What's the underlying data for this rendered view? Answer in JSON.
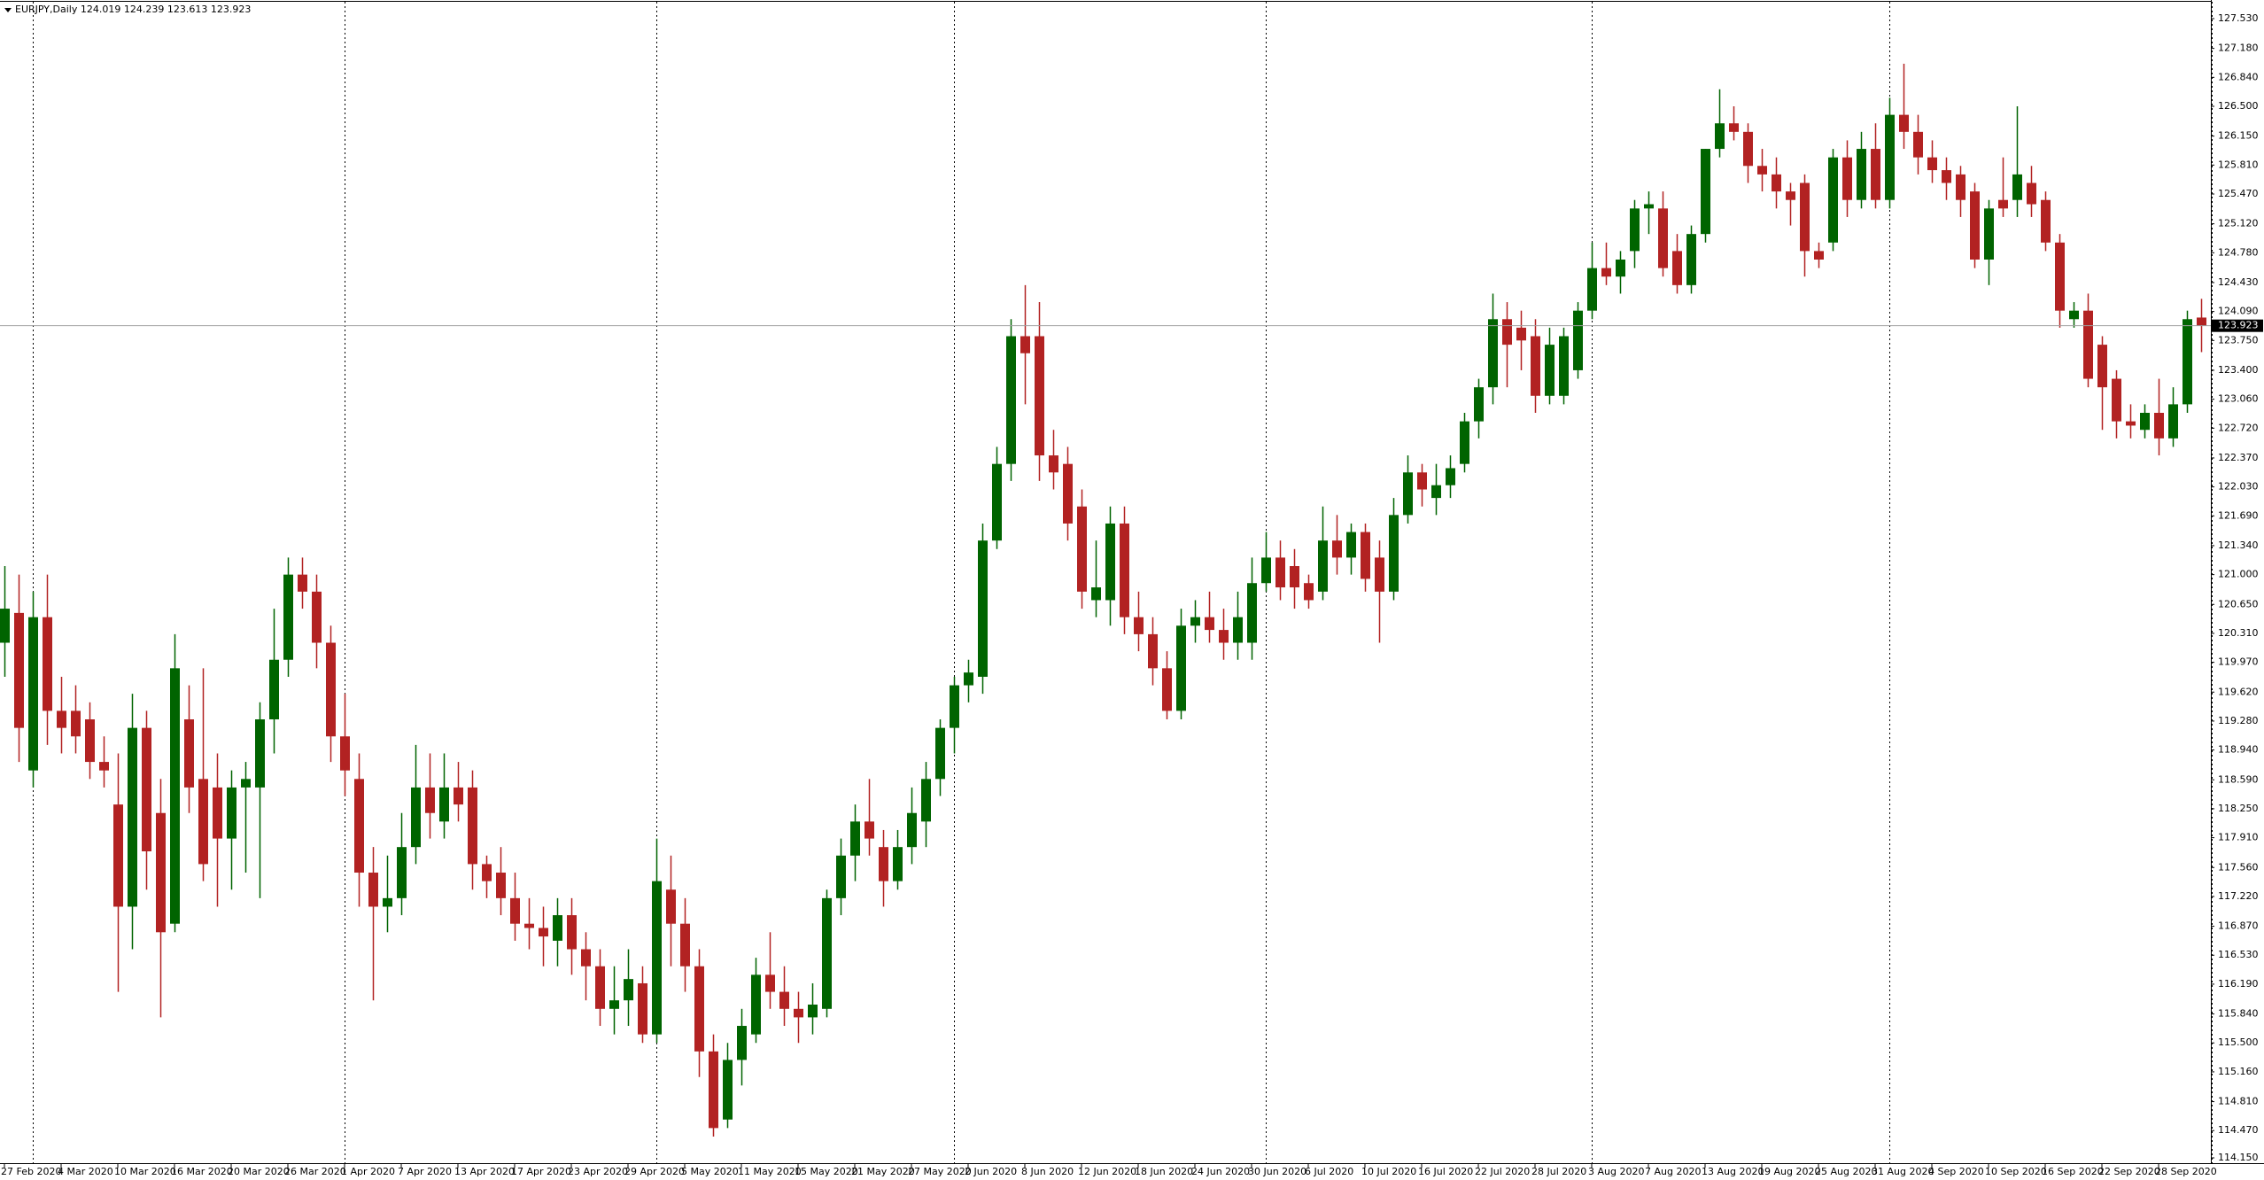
{
  "chart_data": {
    "type": "candlestick",
    "symbol": "EURJPY,Daily",
    "up_color": "#006400",
    "down_color": "#b22222",
    "ylim": [
      114.15,
      127.53
    ],
    "yticks": [
      {
        "value": 127.53,
        "label": "127.530"
      },
      {
        "value": 127.18,
        "label": "127.180"
      },
      {
        "value": 126.84,
        "label": "126.840"
      },
      {
        "value": 126.5,
        "label": "126.500"
      },
      {
        "value": 126.15,
        "label": "126.150"
      },
      {
        "value": 125.81,
        "label": "125.810"
      },
      {
        "value": 125.47,
        "label": "125.470"
      },
      {
        "value": 125.12,
        "label": "125.120"
      },
      {
        "value": 124.78,
        "label": "124.780"
      },
      {
        "value": 124.43,
        "label": "124.430"
      },
      {
        "value": 124.09,
        "label": "124.090"
      },
      {
        "value": 123.75,
        "label": "123.750"
      },
      {
        "value": 123.4,
        "label": "123.400"
      },
      {
        "value": 123.06,
        "label": "123.060"
      },
      {
        "value": 122.72,
        "label": "122.720"
      },
      {
        "value": 122.37,
        "label": "122.370"
      },
      {
        "value": 122.03,
        "label": "122.030"
      },
      {
        "value": 121.69,
        "label": "121.690"
      },
      {
        "value": 121.34,
        "label": "121.340"
      },
      {
        "value": 121.0,
        "label": "121.000"
      },
      {
        "value": 120.65,
        "label": "120.650"
      },
      {
        "value": 120.31,
        "label": "120.310"
      },
      {
        "value": 119.97,
        "label": "119.970"
      },
      {
        "value": 119.62,
        "label": "119.620"
      },
      {
        "value": 119.28,
        "label": "119.280"
      },
      {
        "value": 118.94,
        "label": "118.940"
      },
      {
        "value": 118.59,
        "label": "118.590"
      },
      {
        "value": 118.25,
        "label": "118.250"
      },
      {
        "value": 117.91,
        "label": "117.910"
      },
      {
        "value": 117.56,
        "label": "117.560"
      },
      {
        "value": 117.22,
        "label": "117.220"
      },
      {
        "value": 116.87,
        "label": "116.870"
      },
      {
        "value": 116.53,
        "label": "116.530"
      },
      {
        "value": 116.19,
        "label": "116.190"
      },
      {
        "value": 115.84,
        "label": "115.840"
      },
      {
        "value": 115.5,
        "label": "115.500"
      },
      {
        "value": 115.16,
        "label": "115.160"
      },
      {
        "value": 114.81,
        "label": "114.810"
      },
      {
        "value": 114.47,
        "label": "114.470"
      },
      {
        "value": 114.15,
        "label": "114.150"
      }
    ],
    "categories": [
      "27 Feb 2020",
      null,
      null,
      null,
      "4 Mar 2020",
      null,
      null,
      null,
      "10 Mar 2020",
      null,
      null,
      null,
      "16 Mar 2020",
      null,
      null,
      null,
      "20 Mar 2020",
      null,
      null,
      null,
      "26 Mar 2020",
      null,
      null,
      null,
      "1 Apr 2020",
      null,
      null,
      null,
      "7 Apr 2020",
      null,
      null,
      null,
      "13 Apr 2020",
      null,
      null,
      null,
      "17 Apr 2020",
      null,
      null,
      null,
      "23 Apr 2020",
      null,
      null,
      null,
      "29 Apr 2020",
      null,
      null,
      null,
      "5 May 2020",
      null,
      null,
      null,
      "11 May 2020",
      null,
      null,
      null,
      "15 May 2020",
      null,
      null,
      null,
      "21 May 2020",
      null,
      null,
      null,
      "27 May 2020",
      null,
      null,
      null,
      "2 Jun 2020",
      null,
      null,
      null,
      "8 Jun 2020",
      null,
      null,
      null,
      "12 Jun 2020",
      null,
      null,
      null,
      "18 Jun 2020",
      null,
      null,
      null,
      "24 Jun 2020",
      null,
      null,
      null,
      "30 Jun 2020",
      null,
      null,
      null,
      "6 Jul 2020",
      null,
      null,
      null,
      "10 Jul 2020",
      null,
      null,
      null,
      "16 Jul 2020",
      null,
      null,
      null,
      "22 Jul 2020",
      null,
      null,
      null,
      "28 Jul 2020",
      null,
      null,
      null,
      "3 Aug 2020",
      null,
      null,
      null,
      "7 Aug 2020",
      null,
      null,
      null,
      "13 Aug 2020",
      null,
      null,
      null,
      "19 Aug 2020",
      null,
      null,
      null,
      "25 Aug 2020",
      null,
      null,
      null,
      "31 Aug 2020",
      null,
      null,
      null,
      "4 Sep 2020",
      null,
      null,
      null,
      "10 Sep 2020",
      null,
      null,
      null,
      "16 Sep 2020",
      null,
      null,
      null,
      "22 Sep 2020",
      null,
      null,
      null,
      "28 Sep 2020",
      null,
      null,
      null
    ],
    "open": [
      120.2,
      120.55,
      118.7,
      120.5,
      119.4,
      119.4,
      119.3,
      118.8,
      118.3,
      117.1,
      119.2,
      118.2,
      116.9,
      119.3,
      118.6,
      118.5,
      117.9,
      118.5,
      118.5,
      119.3,
      120.0,
      121.0,
      120.8,
      120.2,
      119.1,
      118.6,
      117.5,
      117.1,
      117.2,
      117.8,
      118.5,
      118.1,
      118.5,
      118.5,
      117.6,
      117.5,
      117.2,
      116.9,
      116.85,
      116.7,
      117.0,
      116.6,
      116.4,
      115.9,
      116.0,
      116.2,
      115.6,
      117.3,
      116.9,
      116.4,
      115.4,
      114.6,
      115.3,
      115.6,
      116.3,
      116.1,
      115.9,
      115.8,
      115.9,
      117.2,
      117.7,
      118.1,
      117.8,
      117.4,
      117.8,
      118.1,
      118.6,
      119.2,
      119.7,
      119.8,
      121.4,
      122.3,
      123.8,
      123.8,
      122.4,
      122.3,
      121.8,
      120.7,
      120.7,
      121.6,
      120.5,
      120.3,
      119.9,
      119.4,
      120.4,
      120.5,
      120.35,
      120.2,
      120.2,
      120.9,
      121.2,
      121.1,
      120.9,
      120.8,
      121.4,
      121.2,
      121.5,
      121.2,
      120.8,
      121.7,
      122.2,
      121.9,
      122.05,
      122.3,
      122.8,
      123.2,
      124.0,
      123.9,
      123.8,
      123.1,
      123.1,
      123.4,
      124.1,
      124.6,
      124.5,
      124.8,
      125.3,
      125.3,
      124.8,
      124.4,
      125.0,
      126.0,
      126.3,
      126.2,
      125.8,
      125.7,
      125.5,
      125.6,
      124.8,
      124.9,
      125.9,
      125.4,
      126.0,
      125.4,
      126.4,
      126.2,
      125.9,
      125.75,
      125.7,
      125.5,
      124.7,
      125.4,
      125.4,
      125.6,
      125.4,
      124.9,
      124.0,
      124.1,
      123.7,
      123.3,
      122.8,
      122.7,
      122.9,
      122.6,
      123.0,
      124.019
    ],
    "high": [
      121.1,
      121.0,
      120.8,
      121.0,
      119.8,
      119.7,
      119.5,
      119.1,
      118.9,
      119.6,
      119.4,
      118.6,
      120.3,
      119.7,
      119.9,
      118.9,
      118.7,
      118.8,
      119.5,
      120.6,
      121.2,
      121.2,
      121.0,
      120.4,
      119.6,
      118.9,
      117.8,
      117.7,
      118.2,
      119.0,
      118.9,
      118.9,
      118.8,
      118.7,
      117.7,
      117.8,
      117.5,
      117.2,
      117.1,
      117.2,
      117.2,
      116.8,
      116.6,
      116.4,
      116.6,
      116.4,
      117.9,
      117.7,
      117.2,
      116.6,
      115.6,
      115.5,
      115.9,
      116.5,
      116.8,
      116.4,
      116.1,
      116.2,
      117.3,
      117.9,
      118.3,
      118.6,
      118.0,
      118.0,
      118.5,
      118.8,
      119.3,
      119.8,
      120.0,
      121.6,
      122.5,
      124.0,
      124.4,
      124.2,
      122.7,
      122.5,
      122.0,
      121.4,
      121.8,
      121.8,
      120.8,
      120.5,
      120.1,
      120.6,
      120.7,
      120.8,
      120.6,
      120.8,
      121.2,
      121.5,
      121.4,
      121.3,
      121.0,
      121.8,
      121.7,
      121.6,
      121.6,
      121.4,
      121.9,
      122.4,
      122.3,
      122.3,
      122.4,
      122.9,
      123.3,
      124.3,
      124.2,
      124.1,
      124.0,
      123.9,
      123.9,
      124.2,
      124.9,
      124.9,
      124.8,
      125.4,
      125.5,
      125.5,
      125.0,
      125.1,
      126.0,
      126.7,
      126.5,
      126.3,
      126.0,
      125.9,
      125.6,
      125.7,
      124.9,
      126.0,
      126.1,
      126.2,
      126.3,
      126.6,
      127.0,
      126.4,
      126.1,
      125.9,
      125.8,
      125.6,
      125.4,
      125.9,
      126.5,
      125.8,
      125.5,
      125.0,
      124.2,
      124.3,
      123.8,
      123.4,
      123.0,
      123.0,
      123.3,
      123.2,
      124.1,
      124.239
    ],
    "low": [
      119.8,
      118.8,
      118.5,
      119.0,
      118.9,
      118.9,
      118.6,
      118.5,
      116.1,
      116.6,
      117.3,
      115.8,
      116.8,
      118.2,
      117.4,
      117.1,
      117.3,
      117.5,
      117.2,
      118.9,
      119.8,
      120.6,
      119.9,
      118.8,
      118.4,
      117.1,
      116.0,
      116.8,
      117.0,
      117.6,
      117.9,
      117.9,
      118.1,
      117.3,
      117.2,
      117.0,
      116.7,
      116.6,
      116.4,
      116.4,
      116.3,
      116.0,
      115.7,
      115.6,
      115.7,
      115.5,
      115.5,
      116.4,
      116.1,
      115.1,
      114.4,
      114.5,
      115.0,
      115.5,
      115.9,
      115.7,
      115.5,
      115.6,
      115.8,
      117.0,
      117.4,
      117.7,
      117.1,
      117.3,
      117.6,
      117.8,
      118.4,
      118.9,
      119.5,
      119.6,
      121.3,
      122.1,
      123.0,
      122.1,
      122.0,
      121.4,
      120.6,
      120.5,
      120.4,
      120.3,
      120.1,
      119.7,
      119.3,
      119.3,
      120.2,
      120.2,
      120.0,
      120.0,
      120.0,
      120.8,
      120.7,
      120.6,
      120.6,
      120.7,
      121.0,
      121.0,
      120.8,
      120.2,
      120.7,
      121.6,
      121.8,
      121.7,
      121.9,
      122.2,
      122.6,
      123.0,
      123.2,
      123.4,
      122.9,
      123.0,
      123.0,
      123.3,
      124.0,
      124.4,
      124.3,
      124.6,
      125.0,
      124.5,
      124.3,
      124.3,
      124.9,
      125.9,
      126.1,
      125.6,
      125.5,
      125.3,
      125.1,
      124.5,
      124.6,
      124.8,
      125.2,
      125.3,
      125.3,
      125.3,
      126.0,
      125.7,
      125.6,
      125.4,
      125.2,
      124.6,
      124.4,
      125.2,
      125.2,
      125.2,
      124.8,
      123.9,
      123.9,
      123.2,
      122.7,
      122.6,
      122.6,
      122.6,
      122.4,
      122.5,
      122.9,
      123.613
    ],
    "close": [
      120.6,
      119.2,
      120.5,
      119.4,
      119.2,
      119.1,
      118.8,
      118.7,
      117.1,
      119.2,
      117.75,
      116.8,
      119.9,
      118.5,
      117.6,
      117.9,
      118.5,
      118.6,
      119.3,
      120.0,
      121.0,
      120.8,
      120.2,
      119.1,
      118.7,
      117.5,
      117.1,
      117.2,
      117.8,
      118.5,
      118.2,
      118.5,
      118.3,
      117.6,
      117.4,
      117.2,
      116.9,
      116.85,
      116.75,
      117.0,
      116.6,
      116.4,
      115.9,
      116.0,
      116.25,
      115.6,
      117.4,
      116.9,
      116.4,
      115.4,
      114.5,
      115.3,
      115.7,
      116.3,
      116.1,
      115.9,
      115.8,
      115.95,
      117.2,
      117.7,
      118.1,
      117.9,
      117.4,
      117.8,
      118.2,
      118.6,
      119.2,
      119.7,
      119.85,
      121.4,
      122.3,
      123.8,
      123.6,
      122.4,
      122.2,
      121.6,
      120.8,
      120.85,
      121.6,
      120.5,
      120.3,
      119.9,
      119.4,
      120.4,
      120.5,
      120.35,
      120.2,
      120.5,
      120.9,
      121.2,
      120.85,
      120.85,
      120.7,
      121.4,
      121.2,
      121.5,
      120.95,
      120.8,
      121.7,
      122.2,
      122.0,
      122.05,
      122.25,
      122.8,
      123.2,
      124.0,
      123.7,
      123.75,
      123.1,
      123.7,
      123.8,
      124.1,
      124.6,
      124.5,
      124.7,
      125.3,
      125.35,
      124.6,
      124.4,
      125.0,
      126.0,
      126.3,
      126.2,
      125.8,
      125.7,
      125.5,
      125.4,
      124.8,
      124.7,
      125.9,
      125.4,
      126.0,
      125.4,
      126.4,
      126.2,
      125.9,
      125.75,
      125.6,
      125.4,
      124.7,
      125.3,
      125.3,
      125.7,
      125.35,
      124.9,
      124.1,
      124.1,
      123.3,
      123.2,
      122.8,
      122.75,
      122.9,
      122.6,
      123.0,
      124.0,
      123.923
    ]
  }
}
